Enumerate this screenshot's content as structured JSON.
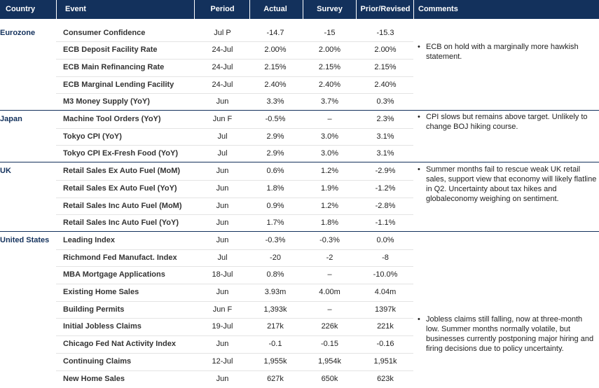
{
  "headers": {
    "country": "Country",
    "event": "Event",
    "period": "Period",
    "actual": "Actual",
    "survey": "Survey",
    "prior": "Prior/Revised",
    "comments": "Comments"
  },
  "groups": [
    {
      "country": "Eurozone",
      "comment": "ECB on hold with a marginally more hawkish statement.",
      "rows": [
        {
          "event": "Consumer Confidence",
          "period": "Jul P",
          "actual": "-14.7",
          "survey": "-15",
          "prior": "-15.3"
        },
        {
          "event": "ECB Deposit Facility Rate",
          "period": "24-Jul",
          "actual": "2.00%",
          "survey": "2.00%",
          "prior": "2.00%"
        },
        {
          "event": "ECB Main Refinancing Rate",
          "period": "24-Jul",
          "actual": "2.15%",
          "survey": "2.15%",
          "prior": "2.15%"
        },
        {
          "event": "ECB Marginal Lending Facility",
          "period": "24-Jul",
          "actual": "2.40%",
          "survey": "2.40%",
          "prior": "2.40%"
        },
        {
          "event": "M3 Money Supply (YoY)",
          "period": "Jun",
          "actual": "3.3%",
          "survey": "3.7%",
          "prior": "0.3%"
        }
      ]
    },
    {
      "country": "Japan",
      "comment": "CPI slows but remains above target. Unlikely to change BOJ hiking course.",
      "rows": [
        {
          "event": "Machine Tool Orders (YoY)",
          "period": "Jun F",
          "actual": "-0.5%",
          "survey": "–",
          "prior": "2.3%"
        },
        {
          "event": "Tokyo CPI (YoY)",
          "period": "Jul",
          "actual": "2.9%",
          "survey": "3.0%",
          "prior": "3.1%"
        },
        {
          "event": "Tokyo CPI Ex-Fresh Food (YoY)",
          "period": "Jul",
          "actual": "2.9%",
          "survey": "3.0%",
          "prior": "3.1%"
        }
      ]
    },
    {
      "country": "UK",
      "comment": "Summer months fail to rescue weak UK retail sales, support view that economy will likely flatline in Q2. Uncertainty about tax hikes and globaleconomy weighing on sentiment.",
      "rows": [
        {
          "event": "Retail Sales Ex Auto Fuel (MoM)",
          "period": "Jun",
          "actual": "0.6%",
          "survey": "1.2%",
          "prior": "-2.9%"
        },
        {
          "event": "Retail Sales Ex Auto Fuel (YoY)",
          "period": "Jun",
          "actual": "1.8%",
          "survey": "1.9%",
          "prior": "-1.2%"
        },
        {
          "event": "Retail Sales Inc Auto Fuel (MoM)",
          "period": "Jun",
          "actual": "0.9%",
          "survey": "1.2%",
          "prior": "-2.8%"
        },
        {
          "event": "Retail Sales Inc Auto Fuel (YoY)",
          "period": "Jun",
          "actual": "1.7%",
          "survey": "1.8%",
          "prior": "-1.1%"
        }
      ]
    },
    {
      "country": "United States",
      "comment": "Jobless claims still falling, now at three-month low. Summer months normally volatile, but businesses currently postponing major hiring and firing decisions due to policy uncertainty.",
      "rows": [
        {
          "event": "Leading Index",
          "period": "Jun",
          "actual": "-0.3%",
          "survey": "-0.3%",
          "prior": "0.0%"
        },
        {
          "event": "Richmond Fed Manufact. Index",
          "period": "Jul",
          "actual": "-20",
          "survey": "-2",
          "prior": "-8"
        },
        {
          "event": "MBA Mortgage Applications",
          "period": "18-Jul",
          "actual": "0.8%",
          "survey": "–",
          "prior": "-10.0%"
        },
        {
          "event": "Existing Home Sales",
          "period": "Jun",
          "actual": "3.93m",
          "survey": "4.00m",
          "prior": "4.04m"
        },
        {
          "event": "Building Permits",
          "period": "Jun F",
          "actual": "1,393k",
          "survey": "–",
          "prior": "1397k"
        },
        {
          "event": "Initial Jobless Claims",
          "period": "19-Jul",
          "actual": "217k",
          "survey": "226k",
          "prior": "221k"
        },
        {
          "event": "Chicago Fed Nat Activity Index",
          "period": "Jun",
          "actual": "-0.1",
          "survey": "-0.15",
          "prior": "-0.16"
        },
        {
          "event": "Continuing Claims",
          "period": "12-Jul",
          "actual": "1,955k",
          "survey": "1,954k",
          "prior": "1,951k"
        },
        {
          "event": "New Home Sales",
          "period": "Jun",
          "actual": "627k",
          "survey": "650k",
          "prior": "623k"
        }
      ]
    }
  ]
}
